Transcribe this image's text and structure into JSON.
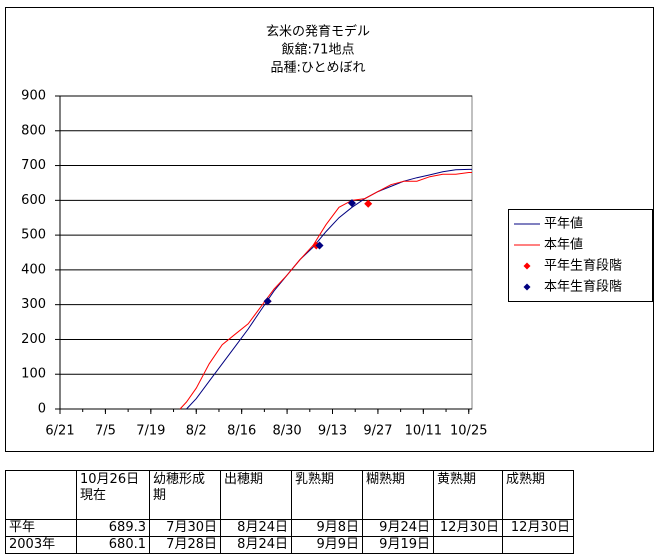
{
  "chart_data": {
    "type": "line",
    "title": "玄米の発育モデル",
    "subtitle": [
      "飯舘:71地点",
      "品種:ひとめぼれ"
    ],
    "xlim": [
      "6/21",
      "10/26"
    ],
    "xticks": [
      "6/21",
      "7/5",
      "7/19",
      "8/2",
      "8/16",
      "8/30",
      "9/13",
      "9/27",
      "10/11",
      "10/25"
    ],
    "ylim": [
      0,
      900
    ],
    "yticks": [
      0,
      100,
      200,
      300,
      400,
      500,
      600,
      700,
      800,
      900
    ],
    "grid": true,
    "legend": "right",
    "series": [
      {
        "name": "平年値",
        "color": "#000080",
        "kind": "line",
        "x": [
          "7/28",
          "7/30",
          "8/2",
          "8/6",
          "8/10",
          "8/14",
          "8/18",
          "8/22",
          "8/26",
          "8/30",
          "9/3",
          "9/7",
          "9/11",
          "9/15",
          "9/19",
          "9/23",
          "9/27",
          "10/1",
          "10/5",
          "10/9",
          "10/13",
          "10/17",
          "10/21",
          "10/25",
          "10/26"
        ],
        "values": [
          null,
          0,
          30,
          80,
          130,
          180,
          230,
          285,
          340,
          385,
          430,
          465,
          510,
          550,
          580,
          605,
          625,
          640,
          655,
          665,
          673,
          682,
          688,
          689,
          689
        ]
      },
      {
        "name": "本年値",
        "color": "#ff0000",
        "kind": "line",
        "x": [
          "7/28",
          "7/30",
          "8/2",
          "8/6",
          "8/10",
          "8/14",
          "8/18",
          "8/22",
          "8/26",
          "8/30",
          "9/3",
          "9/7",
          "9/11",
          "9/15",
          "9/19",
          "9/23",
          "9/27",
          "10/1",
          "10/5",
          "10/9",
          "10/13",
          "10/17",
          "10/21",
          "10/25",
          "10/26"
        ],
        "values": [
          0,
          20,
          60,
          130,
          185,
          215,
          245,
          295,
          345,
          385,
          430,
          470,
          530,
          580,
          600,
          605,
          625,
          645,
          655,
          655,
          668,
          675,
          675,
          680,
          680
        ]
      },
      {
        "name": "平年生育段階",
        "color": "#ff0000",
        "kind": "marker",
        "x": [
          "8/24",
          "9/8",
          "9/24"
        ],
        "values": [
          310,
          470,
          590
        ]
      },
      {
        "name": "本年生育段階",
        "color": "#000080",
        "kind": "marker",
        "x": [
          "8/24",
          "9/9",
          "9/19"
        ],
        "values": [
          310,
          470,
          592
        ]
      }
    ]
  },
  "table": {
    "rows": [
      [
        null,
        "10月26日現在",
        "幼穂形成期",
        "出穂期",
        "乳熟期",
        "糊熟期",
        "黄熟期",
        "成熟期"
      ],
      [
        "平年",
        "689.3",
        "7月30日",
        "8月24日",
        "9月8日",
        "9月24日",
        "12月30日",
        "12月30日"
      ],
      [
        "2003年",
        "680.1",
        "7月28日",
        "8月24日",
        "9月9日",
        "9月19日",
        null,
        null
      ]
    ]
  }
}
